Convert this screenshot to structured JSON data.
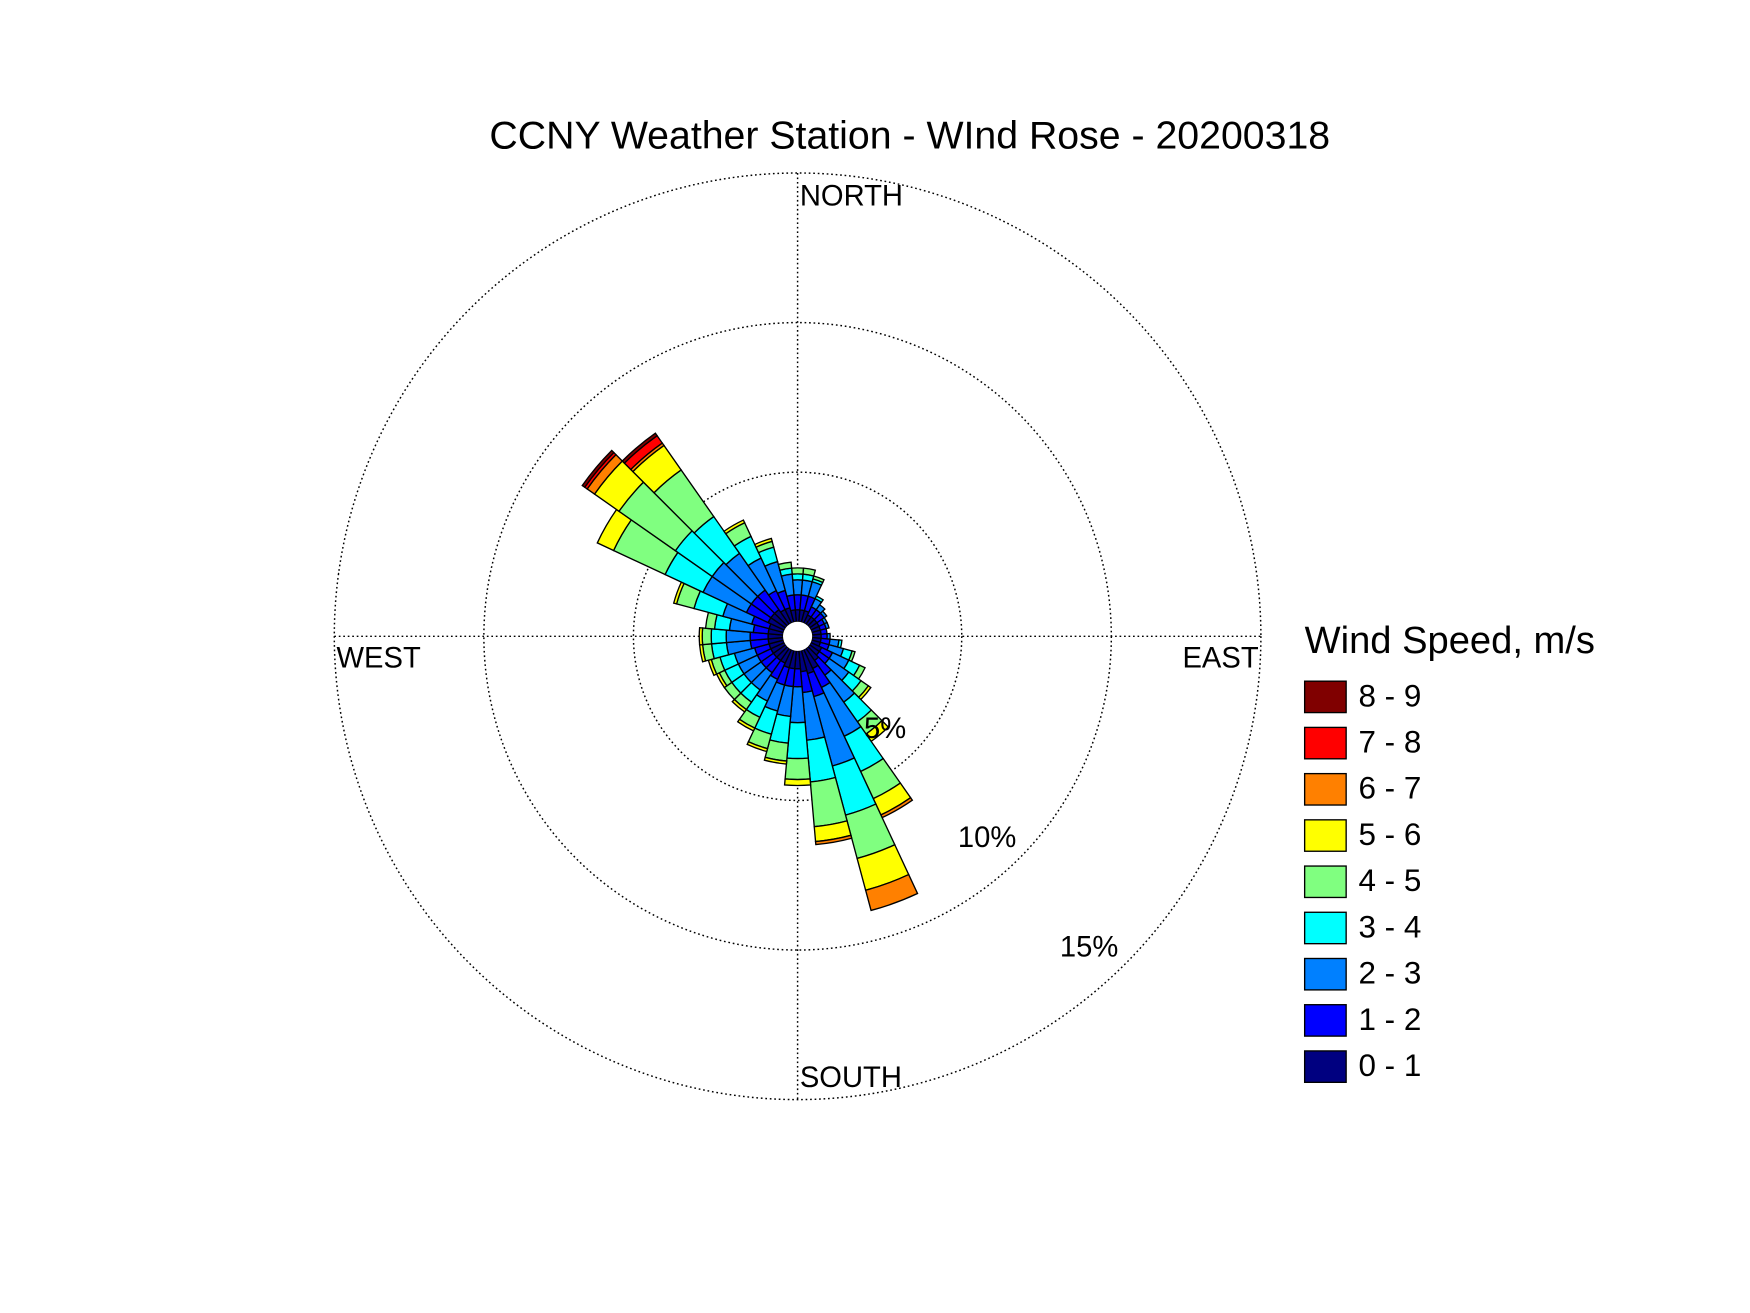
{
  "chart_data": {
    "type": "wind_rose",
    "title": "CCNY Weather Station - WInd Rose - 20200318",
    "legend_title": "Wind Speed, m/s",
    "direction_labels": [
      "NORTH",
      "EAST",
      "SOUTH",
      "WEST"
    ],
    "x": [
      0,
      10,
      20,
      30,
      40,
      50,
      60,
      70,
      80,
      90,
      100,
      110,
      120,
      130,
      140,
      150,
      160,
      170,
      180,
      190,
      200,
      210,
      220,
      230,
      240,
      250,
      260,
      270,
      280,
      290,
      300,
      310,
      320,
      330,
      340,
      350
    ],
    "rlim": [
      0,
      15
    ],
    "rticks": [
      {
        "value": 5,
        "label": "5%"
      },
      {
        "value": 10,
        "label": "10%"
      },
      {
        "value": 15,
        "label": "15%"
      }
    ],
    "grid": true,
    "series": [
      {
        "name": "0 - 1",
        "color": "#000080",
        "values": [
          0.4,
          0.4,
          0.4,
          0.3,
          0.3,
          0.3,
          0.3,
          0.3,
          0.3,
          0.3,
          0.3,
          0.3,
          0.4,
          0.4,
          0.5,
          0.7,
          0.8,
          0.7,
          0.6,
          0.6,
          0.6,
          0.5,
          0.5,
          0.5,
          0.5,
          0.5,
          0.5,
          0.5,
          0.5,
          0.5,
          0.6,
          0.6,
          0.6,
          0.5,
          0.5,
          0.4
        ]
      },
      {
        "name": "1 - 2",
        "color": "#0000ff",
        "values": [
          0.5,
          0.5,
          0.5,
          0.3,
          0.3,
          0.3,
          0.2,
          0.2,
          0.2,
          0.2,
          0.3,
          0.3,
          0.4,
          0.4,
          0.6,
          0.7,
          0.8,
          0.7,
          0.6,
          0.6,
          0.6,
          0.6,
          0.5,
          0.5,
          0.5,
          0.5,
          0.6,
          0.6,
          0.5,
          0.6,
          0.8,
          0.8,
          0.8,
          0.7,
          0.6,
          0.5
        ]
      },
      {
        "name": "2 - 3",
        "color": "#0080ff",
        "values": [
          0.5,
          0.5,
          0.5,
          0.3,
          0.2,
          0.1,
          0.1,
          0.1,
          0,
          0.1,
          0.3,
          0.5,
          0.6,
          0.8,
          1.1,
          1.8,
          2.4,
          1.6,
          1.2,
          1.0,
          0.9,
          0.8,
          0.7,
          0.7,
          0.7,
          0.7,
          0.8,
          0.8,
          0.8,
          1.0,
          1.6,
          1.6,
          1.5,
          1.2,
          1.0,
          0.7
        ]
      },
      {
        "name": "3 - 4",
        "color": "#00ffff",
        "values": [
          0.2,
          0.2,
          0.1,
          0.1,
          0,
          0,
          0,
          0,
          0,
          0,
          0.1,
          0.3,
          0.4,
          0.5,
          0.8,
          1.3,
          1.7,
          1.4,
          1.2,
          0.9,
          0.8,
          0.6,
          0.5,
          0.5,
          0.5,
          0.5,
          0.5,
          0.5,
          0.5,
          1.0,
          1.4,
          1.5,
          1.5,
          0.8,
          0.5,
          0.2
        ]
      },
      {
        "name": "4 - 5",
        "color": "#80ff80",
        "values": [
          0.2,
          0.2,
          0.1,
          0,
          0,
          0,
          0,
          0,
          0,
          0,
          0,
          0.1,
          0.2,
          0.3,
          0.5,
          1.0,
          1.5,
          1.5,
          0.7,
          0.6,
          0.5,
          0.4,
          0.3,
          0.3,
          0.2,
          0.3,
          0.3,
          0.3,
          0.3,
          0.6,
          1.9,
          2.3,
          1.9,
          0.5,
          0.2,
          0.2
        ]
      },
      {
        "name": "5 - 6",
        "color": "#ffff00",
        "values": [
          0,
          0,
          0,
          0,
          0,
          0,
          0,
          0,
          0,
          0,
          0,
          0,
          0,
          0.1,
          0.3,
          0.6,
          1.1,
          0.5,
          0.2,
          0.1,
          0.1,
          0.1,
          0.1,
          0,
          0.1,
          0.1,
          0.1,
          0.1,
          0,
          0.1,
          0.6,
          1.0,
          1.0,
          0.1,
          0.1,
          0
        ]
      },
      {
        "name": "6 - 7",
        "color": "#ff8000",
        "values": [
          0,
          0,
          0,
          0,
          0,
          0,
          0,
          0,
          0,
          0,
          0,
          0,
          0,
          0,
          0,
          0.1,
          0.7,
          0.1,
          0,
          0,
          0,
          0,
          0,
          0,
          0,
          0,
          0,
          0,
          0,
          0,
          0,
          0.3,
          0.1,
          0,
          0,
          0
        ]
      },
      {
        "name": "7 - 8",
        "color": "#ff0000",
        "values": [
          0,
          0,
          0,
          0,
          0,
          0,
          0,
          0,
          0,
          0,
          0,
          0,
          0,
          0,
          0,
          0,
          0,
          0,
          0,
          0,
          0,
          0,
          0,
          0,
          0,
          0,
          0,
          0,
          0,
          0,
          0,
          0.1,
          0.3,
          0,
          0,
          0
        ]
      },
      {
        "name": "8 - 9",
        "color": "#800000",
        "values": [
          0,
          0,
          0,
          0,
          0,
          0,
          0,
          0,
          0,
          0,
          0,
          0,
          0,
          0,
          0,
          0,
          0,
          0,
          0,
          0,
          0,
          0,
          0,
          0,
          0,
          0,
          0,
          0,
          0,
          0,
          0,
          0.1,
          0.1,
          0,
          0,
          0
        ]
      }
    ]
  }
}
